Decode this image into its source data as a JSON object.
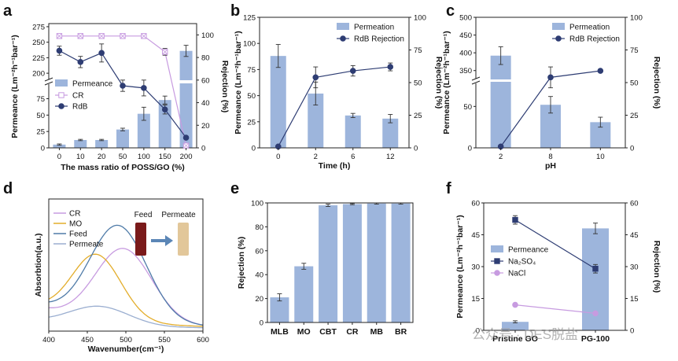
{
  "colors": {
    "bar": "#9db5dc",
    "navy": "#2e3d73",
    "lilac": "#c79be0",
    "gold": "#e3ad2b",
    "steel": "#4f7ba8",
    "lavender": "#9aaed0",
    "arrow": "#5b86b6"
  },
  "watermark": "公众号 · DES脱盐",
  "chart_data": [
    {
      "panel": "a",
      "type": "bar+line",
      "xlabel": "The mass ratio of POSS/GO (%)",
      "ylabel": "Permeance (Lm⁻²h⁻¹bar⁻¹)",
      "ylabel_right": "Rejection (%)",
      "categories": [
        "0",
        "10",
        "20",
        "50",
        "100",
        "150",
        "200"
      ],
      "y_ticks": [
        "0",
        "25",
        "50",
        "75",
        "200",
        "225",
        "250",
        "275"
      ],
      "y_break": [
        90,
        190
      ],
      "y2_ticks": [
        "0",
        "20",
        "40",
        "60",
        "80",
        "100"
      ],
      "ylim_right": [
        0,
        110
      ],
      "series": [
        {
          "name": "Permeance",
          "kind": "bar",
          "values": [
            5,
            12,
            12,
            28,
            52,
            73,
            236
          ],
          "errors": [
            1,
            1,
            1,
            2,
            10,
            6,
            9
          ]
        },
        {
          "name": "CR",
          "kind": "line",
          "axis": "right",
          "values": [
            99,
            99,
            99,
            99,
            99,
            85,
            2
          ],
          "errors": [
            1,
            1,
            1,
            1,
            1,
            3,
            1
          ]
        },
        {
          "name": "RdB",
          "kind": "line",
          "axis": "right",
          "values": [
            86,
            76,
            84,
            55,
            53,
            34,
            9
          ],
          "errors": [
            4,
            5,
            8,
            5,
            7,
            4,
            1
          ]
        }
      ]
    },
    {
      "panel": "b",
      "type": "bar+line",
      "xlabel": "Time (h)",
      "ylabel": "Permeance (Lm⁻²h⁻¹bar⁻¹)",
      "ylabel_right": "Rejection (%)",
      "categories": [
        "0",
        "2",
        "6",
        "12"
      ],
      "ylim": [
        0,
        125
      ],
      "y_ticks": [
        "0",
        "25",
        "50",
        "75",
        "100",
        "125"
      ],
      "ylim_right": [
        0,
        100
      ],
      "y2_ticks": [
        "0",
        "25",
        "50",
        "75",
        "100"
      ],
      "series": [
        {
          "name": "Permeation",
          "kind": "bar",
          "values": [
            88,
            52,
            31,
            28
          ],
          "errors": [
            11,
            11,
            2,
            4
          ]
        },
        {
          "name": "RdB Rejection",
          "kind": "line",
          "axis": "right",
          "values": [
            1,
            54,
            59,
            62
          ],
          "errors": [
            0,
            8,
            4,
            3
          ]
        }
      ]
    },
    {
      "panel": "c",
      "type": "bar+line",
      "xlabel": "pH",
      "ylabel": "Permeance (Lm⁻²h⁻¹bar⁻¹)",
      "ylabel_right": "Rejection (%)",
      "categories": [
        "2",
        "8",
        "10"
      ],
      "y_ticks": [
        "0",
        "50",
        "350",
        "400",
        "450",
        "500"
      ],
      "y_break": [
        75,
        325
      ],
      "y2_ticks": [
        "0",
        "25",
        "50",
        "75",
        "100"
      ],
      "ylim_right": [
        0,
        100
      ],
      "series": [
        {
          "name": "Permeation",
          "kind": "bar",
          "values": [
            392,
            52,
            31
          ],
          "errors": [
            25,
            10,
            6
          ]
        },
        {
          "name": "RdB Rejection",
          "kind": "line",
          "axis": "right",
          "values": [
            1,
            54,
            59
          ],
          "errors": [
            0,
            8,
            1
          ]
        }
      ]
    },
    {
      "panel": "d",
      "type": "line",
      "xlabel": "Wavenumber(cm⁻¹)",
      "ylabel": "Absorbtion(a.u.)",
      "xlim": [
        400,
        600
      ],
      "x_ticks": [
        "400",
        "450",
        "500",
        "550",
        "600"
      ],
      "inset": {
        "feed_label": "Feed",
        "permeate_label": "Permeate"
      },
      "series": [
        {
          "name": "CR",
          "peak": 497,
          "height": 0.64,
          "base": 0.28
        },
        {
          "name": "MO",
          "peak": 462,
          "height": 0.56,
          "base": 0.3
        },
        {
          "name": "Feed",
          "peak": 490,
          "height": 0.82,
          "base": 0.33
        },
        {
          "name": "Permeate",
          "peak": 465,
          "height": 0.18,
          "base": 0.1
        }
      ]
    },
    {
      "panel": "e",
      "type": "bar",
      "ylabel": "Rejection (%)",
      "categories": [
        "MLB",
        "MO",
        "CBT",
        "CR",
        "MB",
        "BR"
      ],
      "values": [
        21,
        47,
        98,
        99,
        99.5,
        99.5
      ],
      "errors": [
        3,
        2.5,
        1,
        0.5,
        0.5,
        0.5
      ],
      "ylim": [
        0,
        100
      ],
      "y_ticks": [
        "0",
        "20",
        "40",
        "60",
        "80",
        "100"
      ]
    },
    {
      "panel": "f",
      "type": "bar+line",
      "ylabel": "Permeance (Lm⁻²h⁻¹bar⁻¹)",
      "ylabel_right": "Rejection (%)",
      "categories": [
        "Pristine GO",
        "PG-100"
      ],
      "ylim": [
        0,
        60
      ],
      "y_ticks": [
        "0",
        "15",
        "30",
        "45",
        "60"
      ],
      "ylim_right": [
        0,
        60
      ],
      "y2_ticks": [
        "0",
        "15",
        "30",
        "45",
        "60"
      ],
      "series": [
        {
          "name": "Permeance",
          "kind": "bar",
          "values": [
            4,
            48
          ],
          "errors": [
            0.5,
            2.5
          ]
        },
        {
          "name": "Na₂SO₄",
          "kind": "line",
          "axis": "right",
          "values": [
            52,
            29
          ],
          "errors": [
            2,
            2
          ]
        },
        {
          "name": "NaCl",
          "kind": "line",
          "axis": "right",
          "values": [
            12,
            8
          ],
          "errors": [
            0.5,
            0.5
          ]
        }
      ]
    }
  ]
}
